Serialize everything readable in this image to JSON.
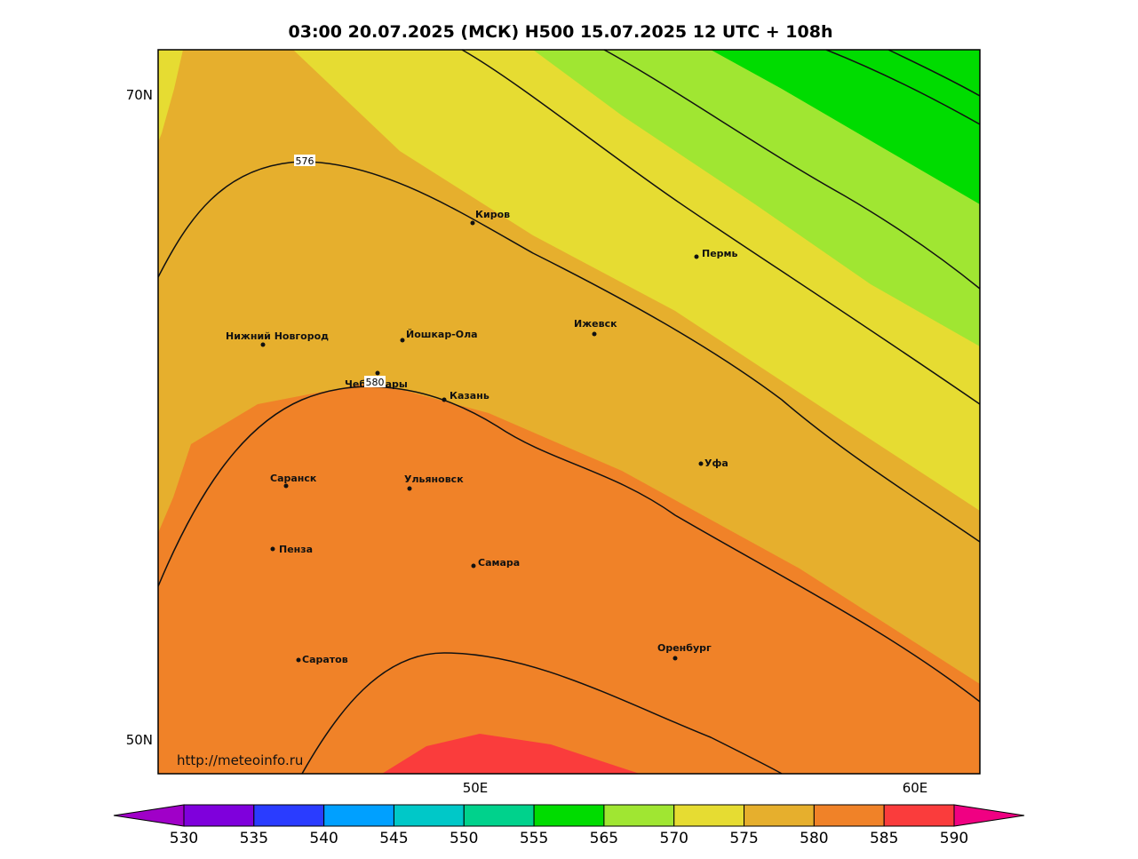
{
  "title": "03:00 20.07.2025 (МСК) H500  15.07.2025 12 UTC + 108h",
  "lat_labels": [
    "70N",
    "50N"
  ],
  "lon_labels": [
    "50E",
    "60E"
  ],
  "cities": [
    "Киров",
    "Пермь",
    "Нижний Новгород",
    "Йошкар-Ола",
    "Ижевск",
    "Чебоксары",
    "Казань",
    "Уфа",
    "Саранск",
    "Ульяновск",
    "Пенза",
    "Самара",
    "Оренбург",
    "Саратов"
  ],
  "contour_labels": [
    "576",
    "580"
  ],
  "source": "http://meteoinfo.ru",
  "colorbar": {
    "ticks": [
      530,
      535,
      540,
      545,
      550,
      555,
      565,
      570,
      575,
      580,
      585,
      590
    ],
    "colors": [
      "#7f00dc",
      "#2a3cff",
      "#00a0ff",
      "#00c8c8",
      "#00d28c",
      "#00dc00",
      "#a0e632",
      "#e6dc32",
      "#e6af2d",
      "#f08228",
      "#fa3c3c"
    ],
    "under_color": "#a000c8",
    "over_color": "#f00082"
  }
}
